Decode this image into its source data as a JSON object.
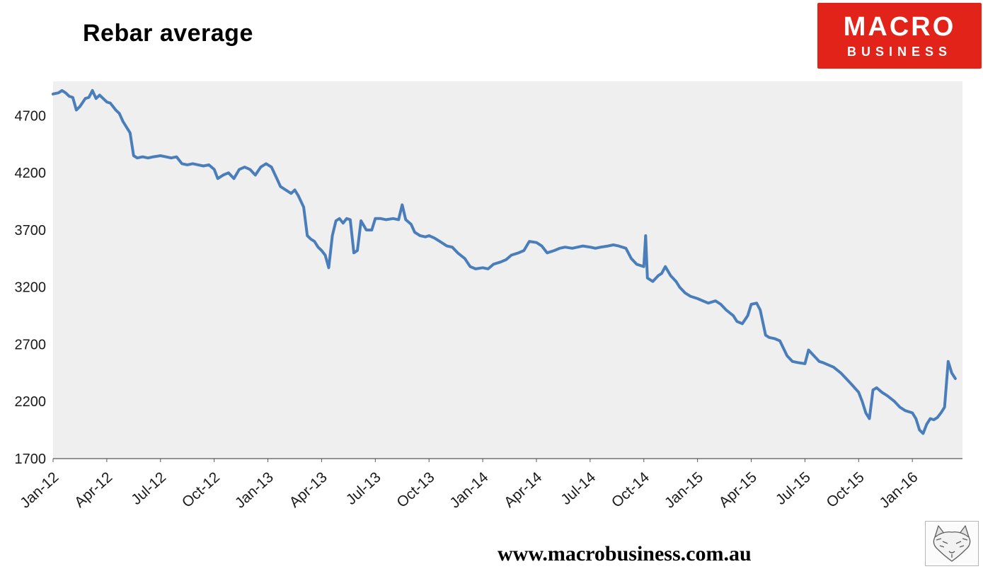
{
  "page_title": "Rebar average",
  "logo": {
    "line1": "MACRO",
    "line2": "BUSINESS",
    "bg": "#e2231a",
    "fg": "#ffffff"
  },
  "footer": {
    "url": "www.macrobusiness.com.au"
  },
  "icons": {
    "bottom_right": "wolf-sketch-icon"
  },
  "chart_data": {
    "type": "line",
    "title": "Rebar average",
    "xlabel": "",
    "ylabel": "",
    "legend": "none",
    "grid": false,
    "plot_bg": "#efefef",
    "axis_color": "#595959",
    "label_color": "#1a1a1a",
    "ylim": [
      1700,
      5000
    ],
    "xlim": [
      0,
      50.8
    ],
    "y_ticks": [
      1700,
      2200,
      2700,
      3200,
      3700,
      4200,
      4700
    ],
    "x_unit": "months since Jan-12",
    "x_ticks": [
      {
        "pos": 0,
        "label": "Jan-12"
      },
      {
        "pos": 3,
        "label": "Apr-12"
      },
      {
        "pos": 6,
        "label": "Jul-12"
      },
      {
        "pos": 9,
        "label": "Oct-12"
      },
      {
        "pos": 12,
        "label": "Jan-13"
      },
      {
        "pos": 15,
        "label": "Apr-13"
      },
      {
        "pos": 18,
        "label": "Jul-13"
      },
      {
        "pos": 21,
        "label": "Oct-13"
      },
      {
        "pos": 24,
        "label": "Jan-14"
      },
      {
        "pos": 27,
        "label": "Apr-14"
      },
      {
        "pos": 30,
        "label": "Jul-14"
      },
      {
        "pos": 33,
        "label": "Oct-14"
      },
      {
        "pos": 36,
        "label": "Jan-15"
      },
      {
        "pos": 39,
        "label": "Apr-15"
      },
      {
        "pos": 42,
        "label": "Jul-15"
      },
      {
        "pos": 45,
        "label": "Oct-15"
      },
      {
        "pos": 48,
        "label": "Jan-16"
      }
    ],
    "series": [
      {
        "name": "Rebar average",
        "color": "#4a7ebb",
        "x": [
          0,
          0.3,
          0.5,
          0.7,
          0.9,
          1.1,
          1.3,
          1.5,
          1.8,
          2.0,
          2.2,
          2.4,
          2.6,
          2.8,
          3.0,
          3.2,
          3.5,
          3.7,
          3.9,
          4.1,
          4.3,
          4.5,
          4.7,
          5.0,
          5.3,
          5.6,
          6.0,
          6.3,
          6.6,
          6.9,
          7.2,
          7.5,
          7.8,
          8.1,
          8.4,
          8.7,
          9.0,
          9.2,
          9.5,
          9.8,
          10.1,
          10.4,
          10.7,
          11.0,
          11.3,
          11.6,
          11.9,
          12.2,
          12.5,
          12.7,
          13.0,
          13.3,
          13.5,
          13.7,
          14.0,
          14.2,
          14.4,
          14.6,
          14.8,
          15.0,
          15.2,
          15.4,
          15.6,
          15.8,
          16.0,
          16.2,
          16.4,
          16.6,
          16.8,
          17.0,
          17.2,
          17.5,
          17.8,
          18.0,
          18.3,
          18.6,
          19.0,
          19.3,
          19.5,
          19.7,
          20.0,
          20.2,
          20.5,
          20.8,
          21.0,
          21.3,
          21.6,
          22.0,
          22.3,
          22.6,
          23.0,
          23.3,
          23.6,
          24.0,
          24.3,
          24.6,
          25.0,
          25.3,
          25.6,
          26.0,
          26.3,
          26.6,
          27.0,
          27.3,
          27.6,
          28.0,
          28.3,
          28.6,
          29.0,
          29.3,
          29.6,
          30.0,
          30.3,
          30.6,
          31.0,
          31.3,
          31.6,
          32.0,
          32.3,
          32.6,
          33.0,
          33.1,
          33.2,
          33.5,
          33.8,
          34.0,
          34.2,
          34.5,
          34.8,
          35.0,
          35.3,
          35.6,
          36.0,
          36.3,
          36.6,
          37.0,
          37.3,
          37.6,
          38.0,
          38.2,
          38.5,
          38.8,
          39.0,
          39.3,
          39.5,
          39.8,
          40.0,
          40.3,
          40.6,
          41.0,
          41.3,
          41.6,
          42.0,
          42.2,
          42.5,
          42.8,
          43.0,
          43.3,
          43.6,
          44.0,
          44.3,
          44.6,
          45.0,
          45.2,
          45.4,
          45.6,
          45.8,
          46.0,
          46.3,
          46.6,
          47.0,
          47.3,
          47.6,
          48.0,
          48.2,
          48.4,
          48.6,
          48.8,
          49.0,
          49.2,
          49.4,
          49.6,
          49.8,
          50.0,
          50.2,
          50.4
        ],
        "values": [
          4890,
          4900,
          4920,
          4900,
          4870,
          4860,
          4750,
          4780,
          4850,
          4860,
          4920,
          4850,
          4880,
          4850,
          4820,
          4810,
          4750,
          4720,
          4650,
          4600,
          4550,
          4350,
          4330,
          4340,
          4330,
          4340,
          4350,
          4340,
          4330,
          4340,
          4280,
          4270,
          4280,
          4270,
          4260,
          4270,
          4230,
          4150,
          4180,
          4200,
          4150,
          4230,
          4250,
          4230,
          4180,
          4250,
          4280,
          4250,
          4150,
          4080,
          4050,
          4020,
          4050,
          4000,
          3900,
          3650,
          3620,
          3600,
          3550,
          3520,
          3480,
          3370,
          3650,
          3780,
          3800,
          3760,
          3800,
          3790,
          3500,
          3520,
          3780,
          3700,
          3700,
          3800,
          3800,
          3790,
          3800,
          3790,
          3920,
          3790,
          3750,
          3680,
          3650,
          3640,
          3650,
          3630,
          3600,
          3560,
          3550,
          3500,
          3450,
          3380,
          3360,
          3370,
          3360,
          3400,
          3420,
          3440,
          3480,
          3500,
          3520,
          3600,
          3590,
          3560,
          3500,
          3520,
          3540,
          3550,
          3540,
          3550,
          3560,
          3550,
          3540,
          3550,
          3560,
          3570,
          3560,
          3540,
          3450,
          3400,
          3380,
          3650,
          3280,
          3250,
          3300,
          3320,
          3380,
          3300,
          3250,
          3200,
          3150,
          3120,
          3100,
          3080,
          3060,
          3080,
          3050,
          3000,
          2950,
          2900,
          2880,
          2950,
          3050,
          3060,
          3000,
          2780,
          2760,
          2750,
          2730,
          2600,
          2550,
          2540,
          2530,
          2650,
          2600,
          2550,
          2540,
          2520,
          2500,
          2450,
          2400,
          2350,
          2280,
          2200,
          2100,
          2050,
          2300,
          2320,
          2280,
          2250,
          2200,
          2150,
          2120,
          2100,
          2050,
          1950,
          1920,
          2000,
          2050,
          2040,
          2060,
          2100,
          2150,
          2550,
          2450,
          2400
        ]
      }
    ]
  }
}
